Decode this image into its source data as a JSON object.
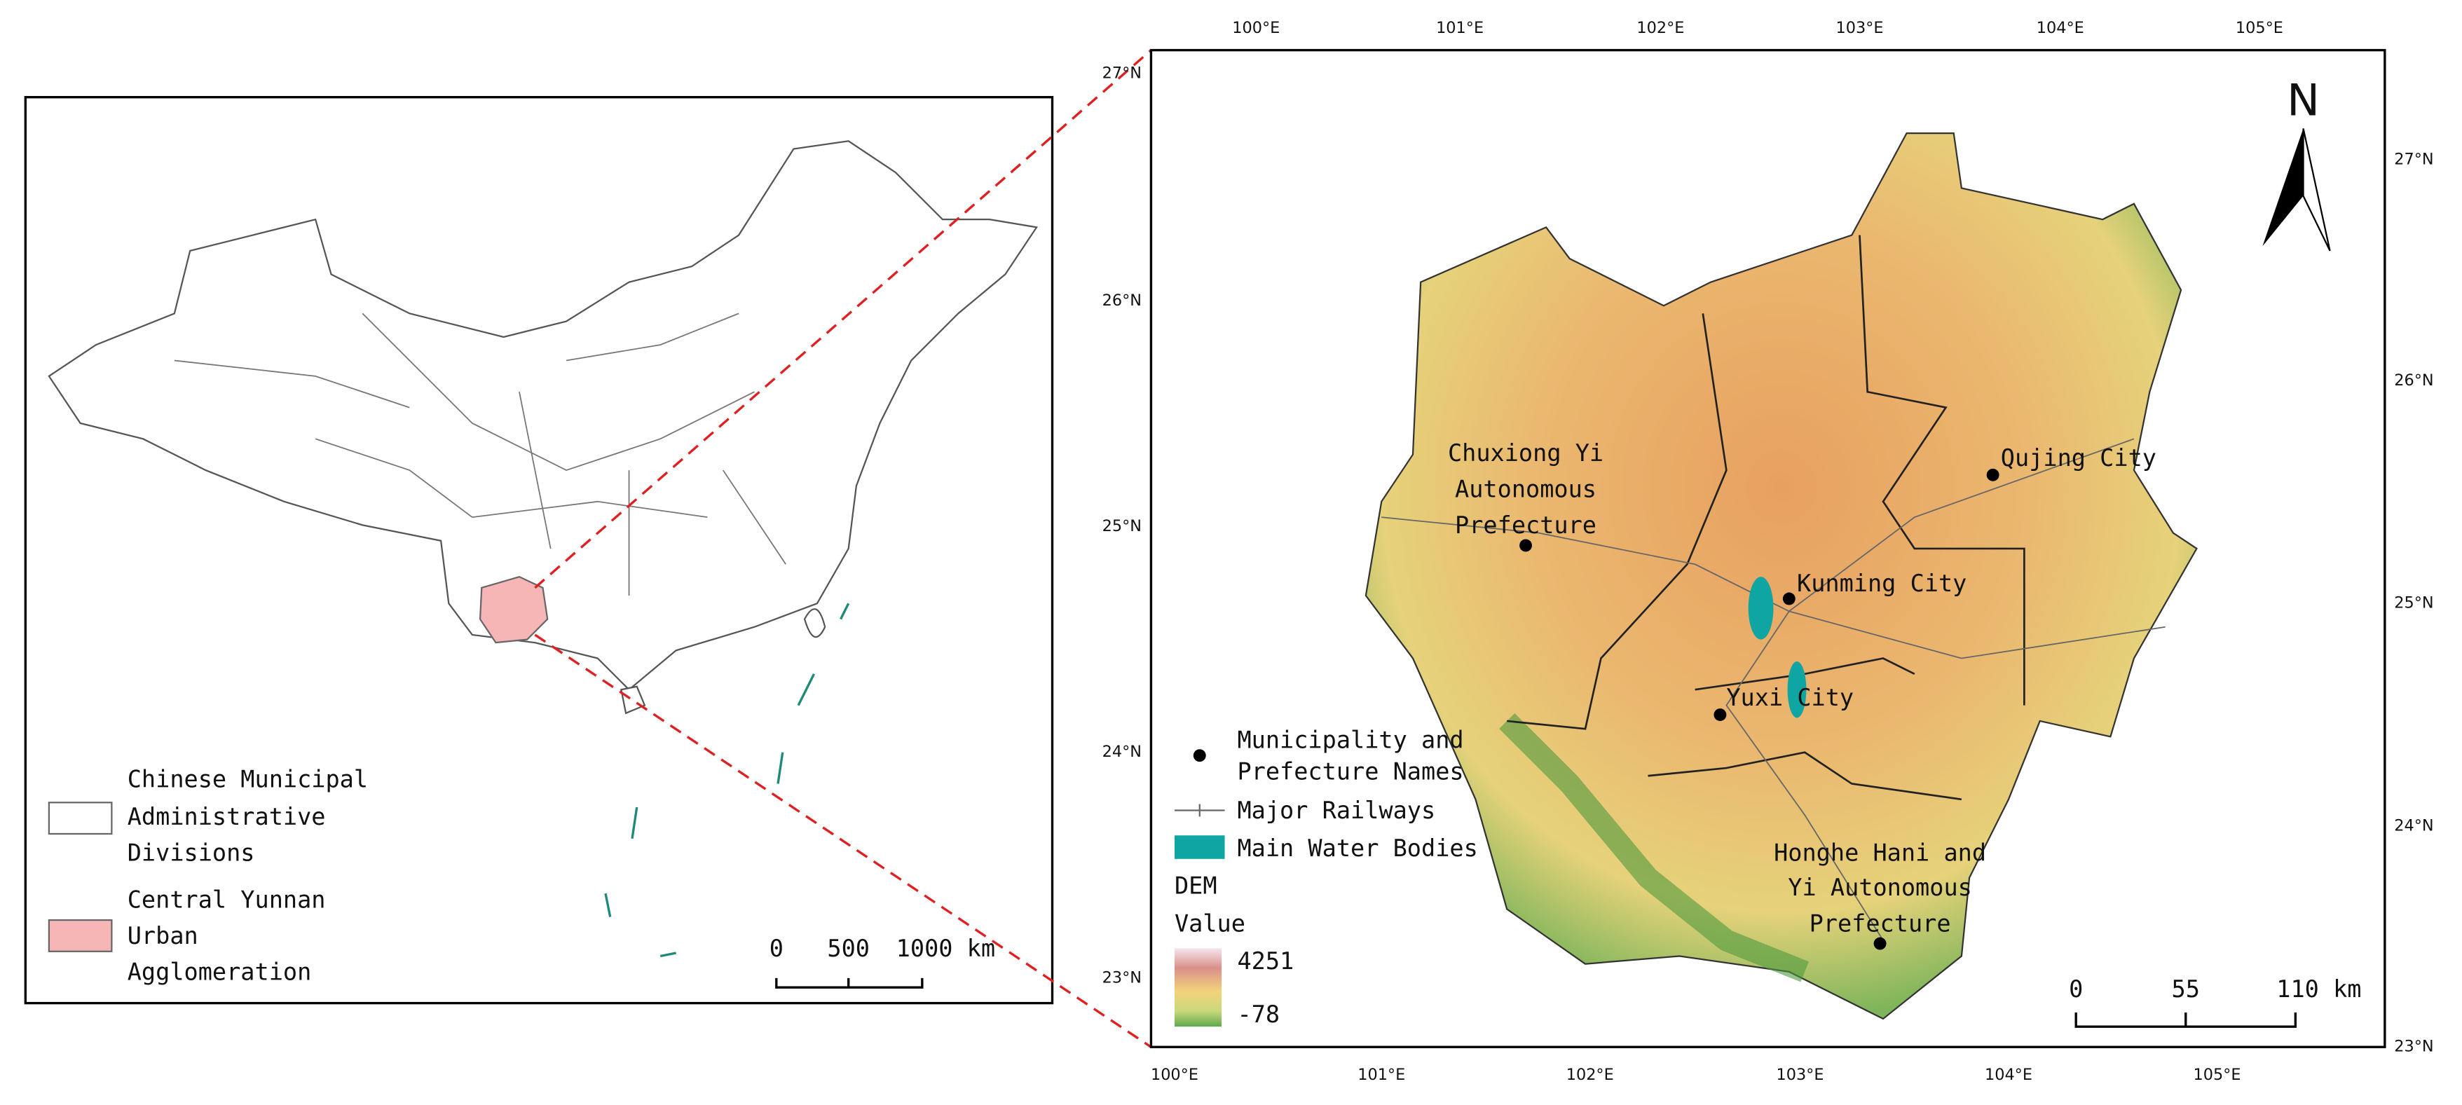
{
  "inset_map": {
    "legend": [
      {
        "lines": [
          "Chinese Municipal",
          "Administrative",
          "Divisions"
        ]
      },
      {
        "lines": [
          "Central Yunnan",
          "Urban",
          "Agglomeration"
        ]
      }
    ],
    "scale_bar": [
      "0",
      "500",
      "1000 km"
    ]
  },
  "main_map": {
    "graticule": {
      "top": [
        "100°E",
        "101°E",
        "102°E",
        "103°E",
        "104°E",
        "105°E"
      ],
      "bottom": [
        "100°E",
        "101°E",
        "102°E",
        "103°E",
        "104°E",
        "105°E"
      ],
      "left": [
        "27°N",
        "26°N",
        "25°N",
        "24°N",
        "23°N"
      ],
      "right": [
        "27°N",
        "26°N",
        "25°N",
        "24°N",
        "23°N"
      ]
    },
    "north_arrow": "N",
    "places": [
      {
        "lines": [
          "Chuxiong Yi",
          "Autonomous",
          "Prefecture"
        ]
      },
      {
        "lines": [
          "Qujing City"
        ]
      },
      {
        "lines": [
          "Kunming City"
        ]
      },
      {
        "lines": [
          "Yuxi City"
        ]
      },
      {
        "lines": [
          "Honghe Hani and",
          "Yi Autonomous",
          "Prefecture"
        ]
      }
    ],
    "legend": {
      "places": [
        "Municipality and",
        "Prefecture Names"
      ],
      "railways": "Major Railways",
      "water": "Main Water Bodies",
      "dem_title": "DEM",
      "dem_subtitle": "Value",
      "dem_max": 4251,
      "dem_min": -78
    },
    "scale_bar": [
      "0",
      "55",
      "110 km"
    ]
  }
}
